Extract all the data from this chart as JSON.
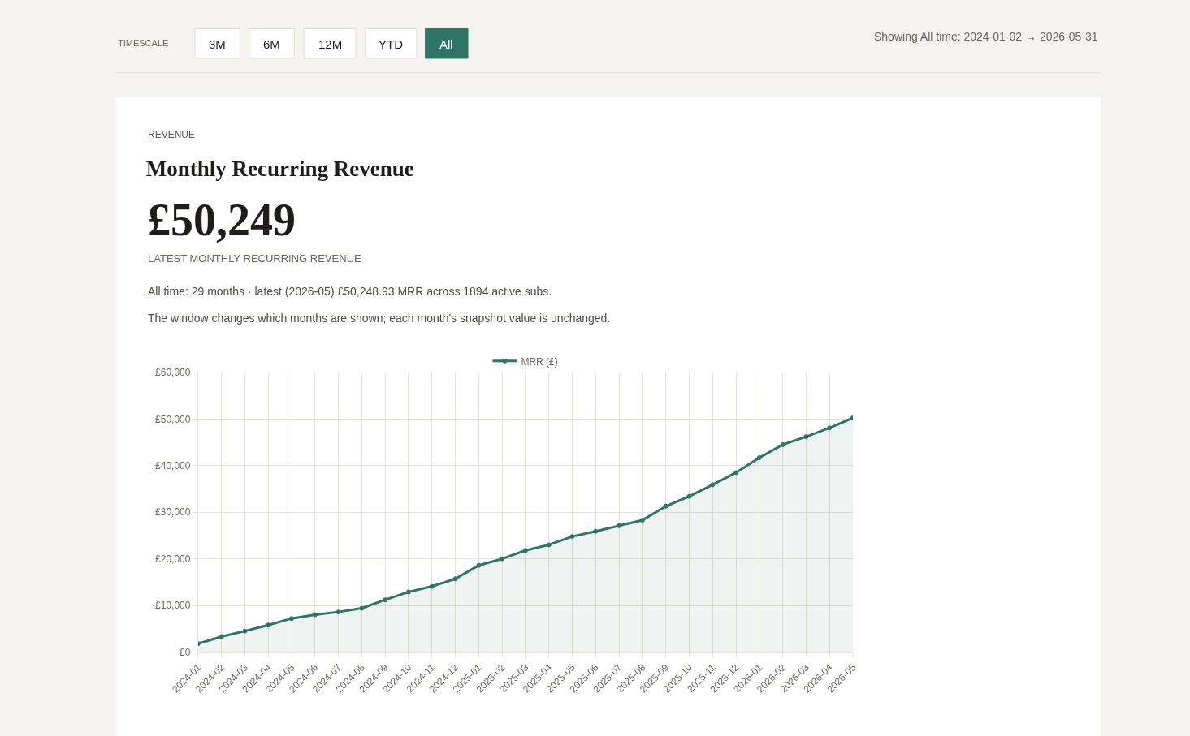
{
  "chart_data": {
    "type": "area",
    "title": "Monthly Recurring Revenue",
    "annotations": [
      "TIMESCALE",
      "3M",
      "6M",
      "12M",
      "YTD",
      "All",
      "Showing All time: 2024-01-02 → 2026-05-31",
      "REVENUE",
      "£50,249",
      "LATEST MONTHLY RECURRING REVENUE",
      "All time: 29 months · latest (2026-05) £50,248.93 MRR across 1894 active subs.",
      "The window changes which months are shown; each month's snapshot value is unchanged."
    ],
    "categories": [
      "2024-01",
      "2024-02",
      "2024-03",
      "2024-04",
      "2024-05",
      "2024-06",
      "2024-07",
      "2024-08",
      "2024-09",
      "2024-10",
      "2024-11",
      "2024-12",
      "2025-01",
      "2025-02",
      "2025-03",
      "2025-04",
      "2025-05",
      "2025-06",
      "2025-07",
      "2025-08",
      "2025-09",
      "2025-10",
      "2025-11",
      "2025-12",
      "2026-01",
      "2026-02",
      "2026-03",
      "2026-04",
      "2026-05"
    ],
    "series": [
      {
        "name": "MRR (£)",
        "color": "#2e7566",
        "values": [
          1800,
          3300,
          4500,
          5800,
          7200,
          8000,
          8600,
          9400,
          11200,
          12900,
          14100,
          15700,
          18600,
          20000,
          21800,
          23000,
          24800,
          25900,
          27100,
          28300,
          31300,
          33400,
          35900,
          38500,
          41700,
          44500,
          46200,
          48100,
          50249
        ]
      }
    ],
    "ylim": [
      0,
      60000
    ],
    "yticks": [
      {
        "value": 0,
        "label": "£0"
      },
      {
        "value": 10000,
        "label": "£10,000"
      },
      {
        "value": 20000,
        "label": "£20,000"
      },
      {
        "value": 30000,
        "label": "£30,000"
      },
      {
        "value": 40000,
        "label": "£40,000"
      },
      {
        "value": 50000,
        "label": "£50,000"
      },
      {
        "value": 60000,
        "label": "£60,000"
      }
    ],
    "grid": true,
    "legend": "top",
    "marker": "circle",
    "line_style": "solid"
  }
}
